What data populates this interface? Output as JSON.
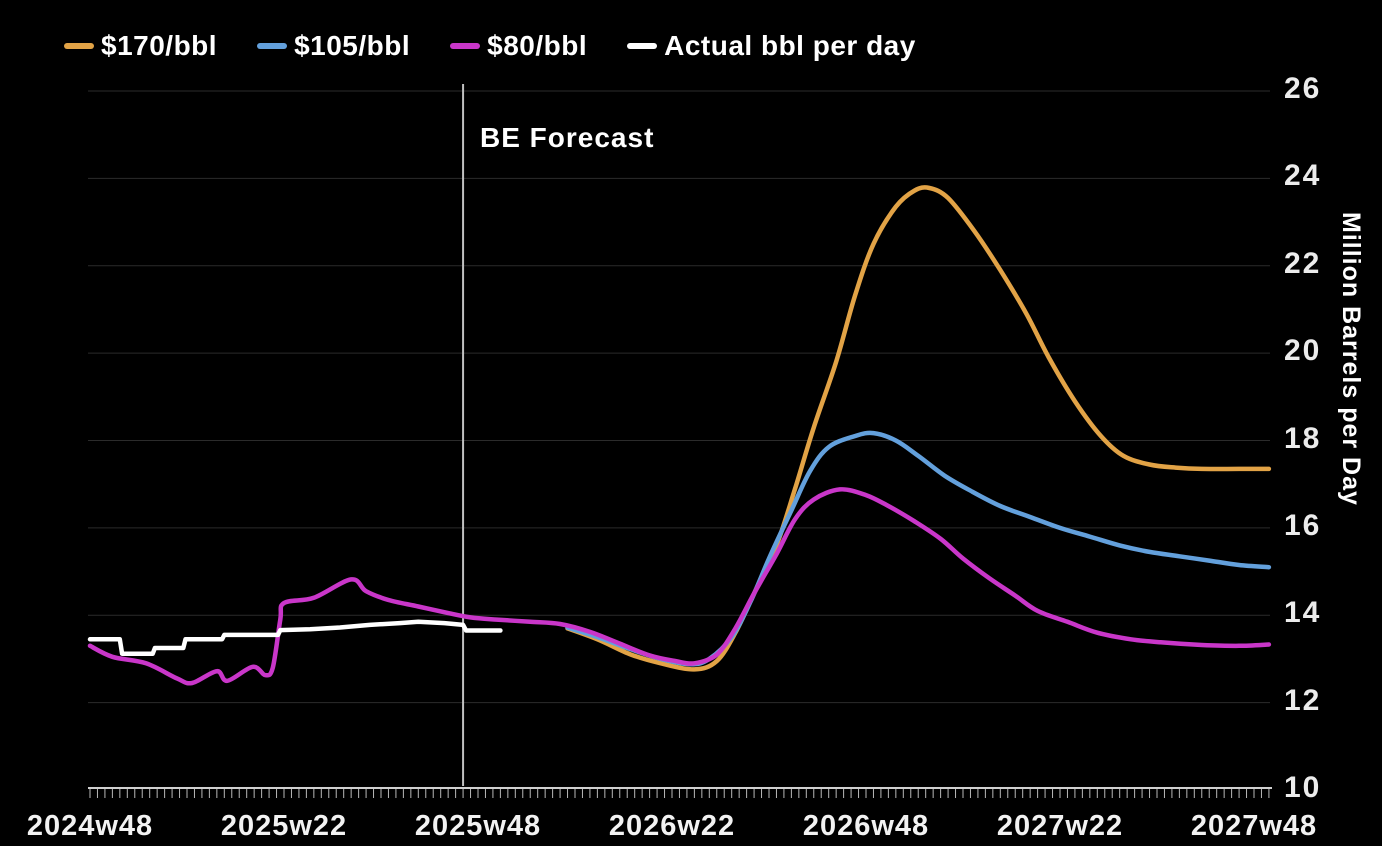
{
  "colors": {
    "background": "#000000",
    "grid": "#2b2b2b",
    "axis": "#d0d0d0",
    "tick": "#b8b8b8",
    "forecast_line": "#c0c0c0",
    "orange": "#e2a346",
    "blue": "#63a0dc",
    "magenta": "#c936c9",
    "white": "#ffffff"
  },
  "legend": {
    "items": [
      {
        "label": "$170/bbl",
        "color": "#e2a346"
      },
      {
        "label": "$105/bbl",
        "color": "#63a0dc"
      },
      {
        "label": "$80/bbl",
        "color": "#c936c9"
      },
      {
        "label": "Actual bbl per day",
        "color": "#ffffff"
      }
    ]
  },
  "annotation": {
    "label": "BE Forecast",
    "week": 50
  },
  "chart_data": {
    "type": "line",
    "title": "BE Forecast",
    "xlabel": "",
    "ylabel": "Million Barrels per Day",
    "ylim": [
      10,
      26
    ],
    "x_unit": "weeks since 2024w48",
    "x_total_weeks": 158,
    "grid": "horizontal-faint",
    "legend_position": "top-left",
    "y_ticks": [
      26,
      24,
      22,
      20,
      18,
      16,
      14,
      12,
      10
    ],
    "y_gridlines": [
      26,
      24,
      22,
      20,
      18,
      16,
      14,
      12
    ],
    "x_ticks": [
      {
        "week": 0,
        "label": "2024w48"
      },
      {
        "week": 26,
        "label": "2025w22"
      },
      {
        "week": 52,
        "label": "2025w48"
      },
      {
        "week": 78,
        "label": "2026w22"
      },
      {
        "week": 104,
        "label": "2026w48"
      },
      {
        "week": 130,
        "label": "2027w22"
      },
      {
        "week": 156,
        "label": "2027w48"
      }
    ],
    "forecast_divider_week": 50,
    "series": [
      {
        "name": "$170/bbl",
        "color": "#e2a346",
        "smooth": true,
        "width": 4.5,
        "points": [
          [
            64,
            13.7
          ],
          [
            68,
            13.45
          ],
          [
            72.5,
            13.1
          ],
          [
            76.5,
            12.9
          ],
          [
            81,
            12.76
          ],
          [
            84,
            12.95
          ],
          [
            86.5,
            13.6
          ],
          [
            89,
            14.5
          ],
          [
            92,
            15.6
          ],
          [
            94.5,
            16.9
          ],
          [
            97,
            18.3
          ],
          [
            100,
            19.8
          ],
          [
            102.5,
            21.3
          ],
          [
            105,
            22.5
          ],
          [
            108,
            23.35
          ],
          [
            110.5,
            23.72
          ],
          [
            112.5,
            23.78
          ],
          [
            115,
            23.55
          ],
          [
            118.5,
            22.8
          ],
          [
            122,
            21.9
          ],
          [
            125.5,
            20.9
          ],
          [
            128.5,
            19.9
          ],
          [
            132,
            18.9
          ],
          [
            135.5,
            18.1
          ],
          [
            138.5,
            17.65
          ],
          [
            142,
            17.45
          ],
          [
            145.5,
            17.38
          ],
          [
            149,
            17.35
          ],
          [
            154,
            17.35
          ],
          [
            158,
            17.35
          ]
        ]
      },
      {
        "name": "$105/bbl",
        "color": "#63a0dc",
        "smooth": true,
        "width": 4.5,
        "points": [
          [
            64,
            13.72
          ],
          [
            68,
            13.5
          ],
          [
            72,
            13.25
          ],
          [
            76.5,
            13.0
          ],
          [
            80.5,
            12.88
          ],
          [
            83,
            13.0
          ],
          [
            86,
            13.5
          ],
          [
            88.5,
            14.3
          ],
          [
            91,
            15.3
          ],
          [
            94,
            16.4
          ],
          [
            96.5,
            17.3
          ],
          [
            99,
            17.85
          ],
          [
            102.5,
            18.1
          ],
          [
            105,
            18.17
          ],
          [
            108,
            18.0
          ],
          [
            111,
            17.65
          ],
          [
            114.5,
            17.2
          ],
          [
            118,
            16.85
          ],
          [
            122,
            16.5
          ],
          [
            126,
            16.25
          ],
          [
            130,
            16.0
          ],
          [
            134,
            15.8
          ],
          [
            138,
            15.6
          ],
          [
            142,
            15.45
          ],
          [
            146,
            15.35
          ],
          [
            150,
            15.25
          ],
          [
            154,
            15.15
          ],
          [
            158,
            15.1
          ]
        ]
      },
      {
        "name": "$80/bbl",
        "color": "#c936c9",
        "smooth": true,
        "width": 4.5,
        "points": [
          [
            0,
            13.3
          ],
          [
            3,
            13.05
          ],
          [
            7.5,
            12.9
          ],
          [
            11.7,
            12.55
          ],
          [
            13.7,
            12.45
          ],
          [
            17,
            12.72
          ],
          [
            18.4,
            12.5
          ],
          [
            21.8,
            12.82
          ],
          [
            23.5,
            12.63
          ],
          [
            24.5,
            12.8
          ],
          [
            25.5,
            13.9
          ],
          [
            26,
            14.28
          ],
          [
            30,
            14.4
          ],
          [
            35,
            14.82
          ],
          [
            37,
            14.55
          ],
          [
            40,
            14.35
          ],
          [
            44,
            14.2
          ],
          [
            48,
            14.05
          ],
          [
            51,
            13.95
          ],
          [
            54.5,
            13.9
          ],
          [
            59,
            13.85
          ],
          [
            63,
            13.8
          ],
          [
            67,
            13.62
          ],
          [
            71,
            13.35
          ],
          [
            75,
            13.08
          ],
          [
            78.5,
            12.95
          ],
          [
            81,
            12.9
          ],
          [
            84,
            13.1
          ],
          [
            86.5,
            13.7
          ],
          [
            89,
            14.5
          ],
          [
            92,
            15.4
          ],
          [
            94.5,
            16.2
          ],
          [
            97,
            16.65
          ],
          [
            100.5,
            16.88
          ],
          [
            104,
            16.75
          ],
          [
            107,
            16.5
          ],
          [
            110.5,
            16.15
          ],
          [
            114,
            15.75
          ],
          [
            117,
            15.3
          ],
          [
            120.5,
            14.85
          ],
          [
            124,
            14.45
          ],
          [
            127,
            14.1
          ],
          [
            131,
            13.85
          ],
          [
            135,
            13.6
          ],
          [
            139.5,
            13.45
          ],
          [
            143.5,
            13.38
          ],
          [
            149,
            13.32
          ],
          [
            154,
            13.3
          ],
          [
            158,
            13.33
          ]
        ]
      },
      {
        "name": "Actual bbl per day",
        "color": "#ffffff",
        "smooth": false,
        "width": 4.5,
        "points": [
          [
            0,
            13.45
          ],
          [
            4,
            13.45
          ],
          [
            4.3,
            13.12
          ],
          [
            8.4,
            13.12
          ],
          [
            8.7,
            13.25
          ],
          [
            12.5,
            13.25
          ],
          [
            12.8,
            13.45
          ],
          [
            17.7,
            13.45
          ],
          [
            18,
            13.55
          ],
          [
            25.2,
            13.55
          ],
          [
            25.5,
            13.66
          ],
          [
            29.5,
            13.68
          ],
          [
            33.5,
            13.72
          ],
          [
            37.5,
            13.78
          ],
          [
            41.5,
            13.82
          ],
          [
            44,
            13.85
          ],
          [
            47.5,
            13.82
          ],
          [
            50,
            13.78
          ],
          [
            50.4,
            13.65
          ],
          [
            55,
            13.65
          ]
        ]
      }
    ]
  },
  "y_axis_title": "Million Barrels per Day"
}
